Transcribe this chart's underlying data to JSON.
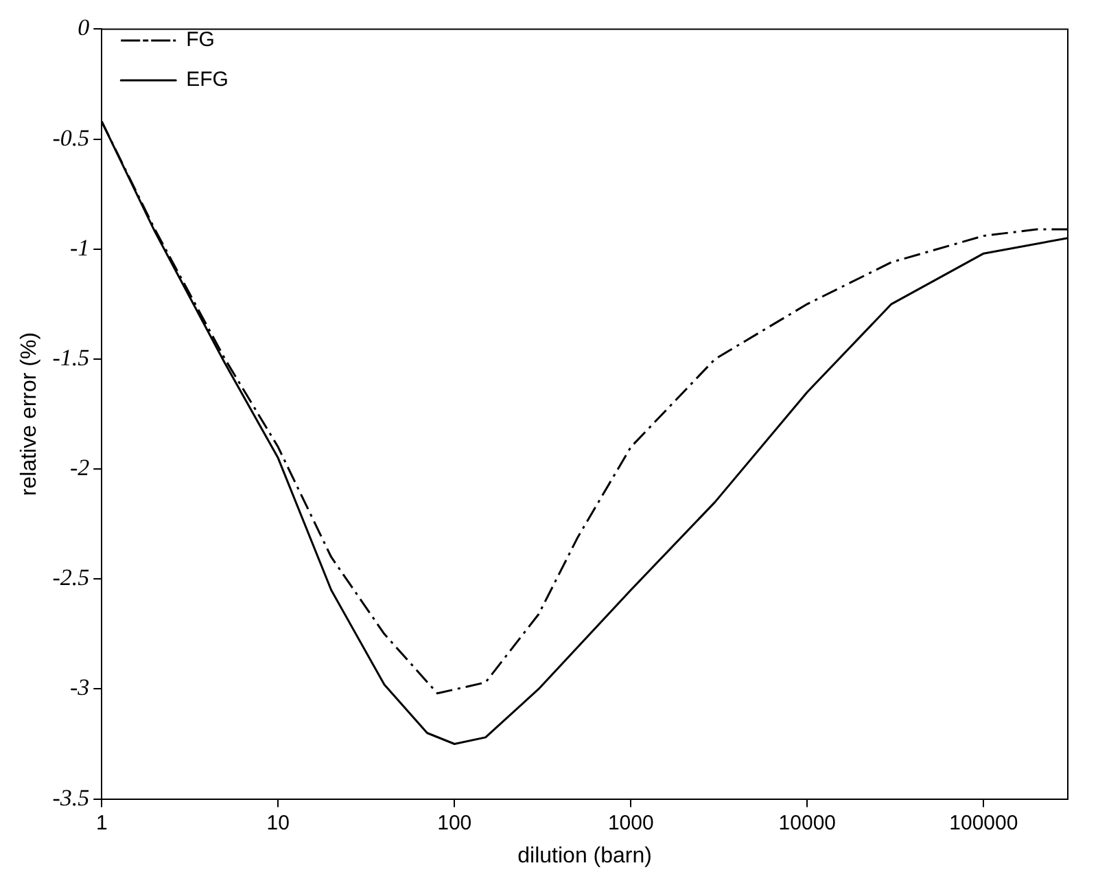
{
  "chart_data": {
    "type": "line",
    "xlabel": "dilution (barn)",
    "ylabel": "relative error (%)",
    "log": "x",
    "xlim": [
      1,
      300000
    ],
    "xticks": [
      1,
      10,
      100,
      1000,
      10000,
      100000
    ],
    "ylim": [
      -3.5,
      0
    ],
    "yticks": [
      0,
      -0.5,
      -1,
      -1.5,
      -2,
      -2.5,
      -3,
      -3.5
    ],
    "grid": false,
    "legend": "top left",
    "marker": "none",
    "series": [
      {
        "name": "FG",
        "color": "#000000",
        "line_style": "dashed",
        "x": [
          1,
          2,
          5,
          10,
          20,
          40,
          80,
          150,
          300,
          500,
          1000,
          3000,
          10000,
          30000,
          100000,
          200000,
          300000
        ],
        "values": [
          -0.42,
          -0.91,
          -1.5,
          -1.9,
          -2.4,
          -2.75,
          -3.02,
          -2.97,
          -2.66,
          -2.31,
          -1.9,
          -1.5,
          -1.25,
          -1.06,
          -0.94,
          -0.91,
          -0.91
        ]
      },
      {
        "name": "EFG",
        "color": "#000000",
        "line_style": "solid",
        "x": [
          1,
          2,
          5,
          10,
          20,
          40,
          70,
          100,
          150,
          300,
          1000,
          3000,
          10000,
          30000,
          100000,
          300000
        ],
        "values": [
          -0.42,
          -0.92,
          -1.52,
          -1.95,
          -2.55,
          -2.98,
          -3.2,
          -3.25,
          -3.22,
          -3.0,
          -2.55,
          -2.15,
          -1.65,
          -1.25,
          -1.02,
          -0.95
        ]
      }
    ]
  }
}
